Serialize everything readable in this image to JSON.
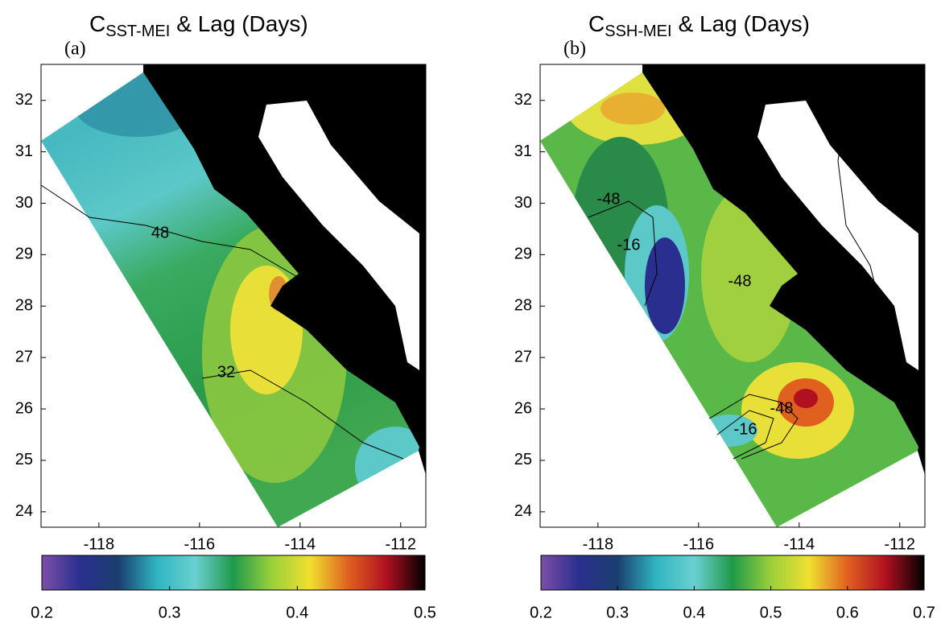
{
  "chart_data": [
    {
      "type": "contour-map",
      "panel_label": "(a)",
      "title": "C",
      "title_subscript": "SST-MEI",
      "title_suffix": "& Lag (Days)",
      "xlim": [
        -119.15,
        -111.5
      ],
      "xticks": [
        -118,
        -116,
        -114,
        -112
      ],
      "ylim": [
        23.7,
        32.7
      ],
      "yticks": [
        24,
        25,
        26,
        27,
        28,
        29,
        30,
        31,
        32
      ],
      "contour_labels": [
        "48",
        "32"
      ],
      "colorbar": {
        "lim": [
          0.2,
          0.5
        ],
        "ticks": [
          0.2,
          0.3,
          0.4,
          0.5
        ],
        "colormap": [
          "#7a4fa8",
          "#2a2f8f",
          "#1a3f6f",
          "#2fb5c0",
          "#6ad0d0",
          "#1f9a4a",
          "#9ad03a",
          "#f0e030",
          "#e06020",
          "#b01020",
          "#000000"
        ]
      }
    },
    {
      "type": "contour-map",
      "panel_label": "(b)",
      "title": "C",
      "title_subscript": "SSH-MEI",
      "title_suffix": "& Lag (Days)",
      "xlim": [
        -119.15,
        -111.5
      ],
      "xticks": [
        -118,
        -116,
        -114,
        -112
      ],
      "ylim": [
        23.7,
        32.7
      ],
      "yticks": [
        24,
        25,
        26,
        27,
        28,
        29,
        30,
        31,
        32
      ],
      "contour_labels": [
        "-48",
        "-16",
        "-48",
        "-48",
        "-16"
      ],
      "colorbar": {
        "lim": [
          0.2,
          0.7
        ],
        "ticks": [
          0.2,
          0.3,
          0.4,
          0.5,
          0.6,
          0.7
        ],
        "colormap": [
          "#7a4fa8",
          "#2a2f8f",
          "#1a3f6f",
          "#2fb5c0",
          "#6ad0d0",
          "#1f9a4a",
          "#9ad03a",
          "#f0e030",
          "#e06020",
          "#b01020",
          "#000000"
        ]
      }
    }
  ]
}
